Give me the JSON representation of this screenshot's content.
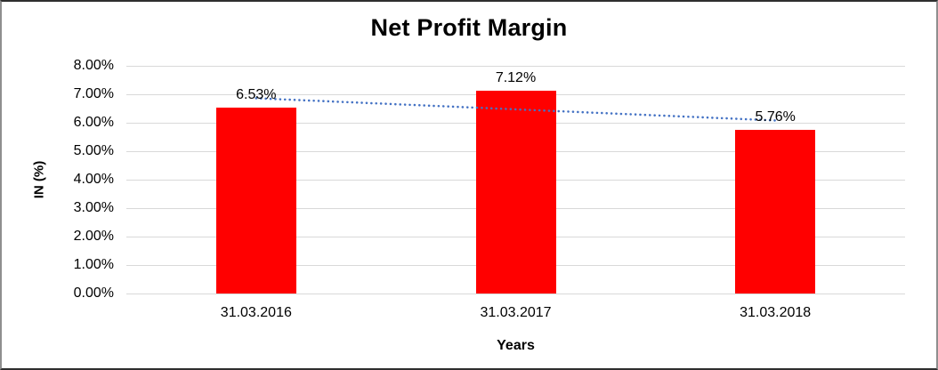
{
  "chart_data": {
    "type": "bar",
    "title": "Net Profit Margin",
    "xlabel": "Years",
    "ylabel": "IN (%)",
    "categories": [
      "31.03.2016",
      "31.03.2017",
      "31.03.2018"
    ],
    "values": [
      6.53,
      7.12,
      5.76
    ],
    "data_labels": [
      "6.53%",
      "7.12%",
      "5.76%"
    ],
    "ylim": [
      0,
      8
    ],
    "y_ticks": [
      "0.00%",
      "1.00%",
      "2.00%",
      "3.00%",
      "4.00%",
      "5.00%",
      "6.00%",
      "7.00%",
      "8.00%"
    ],
    "grid": true,
    "legend": "none",
    "bar_color": "#FF0000",
    "gridline_color": "#d9d9d9",
    "trendline": {
      "kind": "linear",
      "style": "dotted",
      "color": "#4472C4",
      "start_value": 6.86,
      "end_value": 6.08
    }
  }
}
